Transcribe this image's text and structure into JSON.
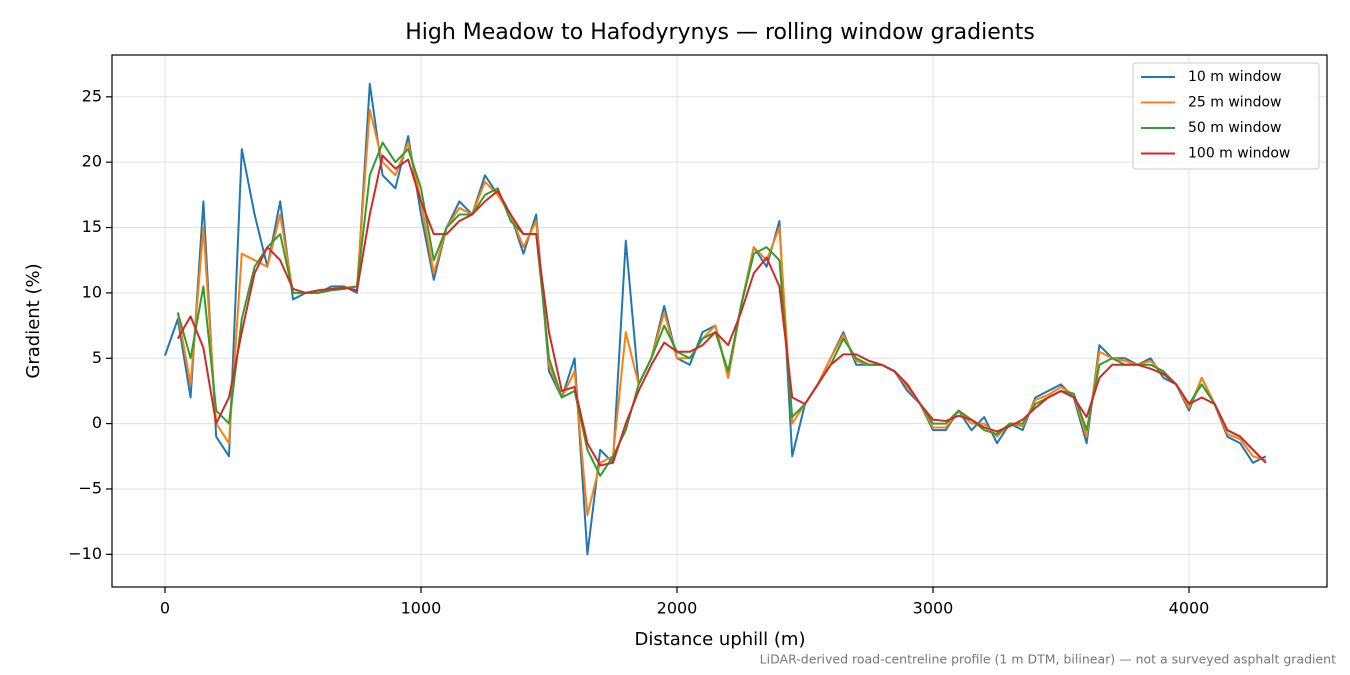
{
  "chart_data": {
    "type": "line",
    "title": "High Meadow to Hafodyrynys — rolling window gradients",
    "x_label": "Distance uphill (m)",
    "y_label": "Gradient (%)",
    "footnote": "LiDAR-derived road-centreline profile (1 m DTM, bilinear) — not a surveyed asphalt gradient",
    "x": [
      0,
      50,
      100,
      150,
      200,
      250,
      300,
      350,
      400,
      450,
      500,
      550,
      600,
      650,
      700,
      750,
      800,
      850,
      900,
      950,
      1000,
      1050,
      1100,
      1150,
      1200,
      1250,
      1300,
      1350,
      1400,
      1450,
      1500,
      1550,
      1600,
      1650,
      1700,
      1750,
      1800,
      1850,
      1900,
      1950,
      2000,
      2050,
      2100,
      2150,
      2200,
      2250,
      2300,
      2350,
      2400,
      2450,
      2500,
      2550,
      2600,
      2650,
      2700,
      2750,
      2800,
      2850,
      2900,
      2950,
      3000,
      3050,
      3100,
      3150,
      3200,
      3250,
      3300,
      3350,
      3400,
      3450,
      3500,
      3550,
      3600,
      3650,
      3700,
      3750,
      3800,
      3850,
      3900,
      3950,
      4000,
      4050,
      4100,
      4150,
      4200,
      4250,
      4300
    ],
    "series": [
      {
        "name": "10 m window",
        "color": "#1f77b4",
        "values": [
          5.2,
          8,
          2,
          17,
          -1,
          -2.5,
          21,
          16,
          12,
          17,
          9.5,
          10,
          10,
          10.5,
          10.5,
          10,
          26,
          19,
          18,
          22,
          16,
          11,
          15,
          17,
          16,
          19,
          17.5,
          16,
          13,
          16,
          4,
          2,
          5,
          -10,
          -2,
          -3,
          14,
          3,
          5,
          9,
          5,
          4.5,
          7,
          7.5,
          3.5,
          9,
          13.5,
          12,
          15.5,
          -2.5,
          1.5,
          3,
          5,
          7,
          4.5,
          4.5,
          4.5,
          4,
          2.5,
          1.5,
          -0.5,
          -0.5,
          1,
          -0.5,
          0.5,
          -1.5,
          0,
          -0.5,
          2,
          2.5,
          3,
          2,
          -1.5,
          6,
          5,
          5,
          4.5,
          5,
          3.5,
          3,
          1,
          3.5,
          1.5,
          -1,
          -1.5,
          -3,
          -2.5
        ]
      },
      {
        "name": "25 m window",
        "color": "#ff7f0e",
        "values": [
          null,
          8.5,
          3,
          15,
          0,
          -1.5,
          13,
          12.5,
          12,
          16,
          10,
          10,
          10,
          10.3,
          10.4,
          10.5,
          24,
          20,
          19,
          21.5,
          17,
          11.5,
          15,
          16.5,
          16,
          18.5,
          17.5,
          16,
          13.5,
          15.5,
          4.5,
          2,
          4,
          -7,
          -3,
          -2.5,
          7,
          3,
          5,
          8.5,
          5,
          5,
          6.5,
          7.5,
          3.5,
          9,
          13.5,
          12.5,
          15,
          0,
          1.5,
          3,
          5,
          6.8,
          4.8,
          4.5,
          4.5,
          4,
          2.8,
          1.5,
          -0.3,
          -0.3,
          1,
          0,
          0,
          -1,
          0,
          -0.2,
          1.8,
          2.2,
          2.8,
          2.2,
          -1,
          5.5,
          5,
          4.8,
          4.5,
          4.8,
          3.8,
          3,
          1.2,
          3.5,
          1.5,
          -0.8,
          -1.2,
          -2.5,
          -2.8
        ]
      },
      {
        "name": "50 m window",
        "color": "#2ca02c",
        "values": [
          null,
          8.5,
          5,
          10.5,
          1,
          0,
          8,
          12,
          13.5,
          14.5,
          10,
          10,
          10,
          10.2,
          10.3,
          10.5,
          19,
          21.5,
          20,
          21,
          18,
          12.5,
          15,
          16,
          16,
          17.5,
          18,
          15.5,
          14.5,
          14.5,
          5,
          2,
          2.5,
          -2,
          -4,
          -2.5,
          -0.5,
          3,
          5,
          7.5,
          5.5,
          5,
          6.5,
          7,
          4,
          9,
          13,
          13.5,
          12.5,
          0.5,
          1.5,
          3,
          4.5,
          6.5,
          5,
          4.5,
          4.5,
          4,
          3,
          1.5,
          0,
          0,
          1,
          0.3,
          -0.5,
          -0.8,
          0,
          0,
          1.5,
          2,
          2.5,
          2.3,
          -0.5,
          4.5,
          5,
          4.5,
          4.5,
          4.5,
          4,
          3,
          1.5,
          3,
          1.5,
          -0.5,
          -1,
          -2,
          -3
        ]
      },
      {
        "name": "100 m window",
        "color": "#d62728",
        "values": [
          null,
          6.5,
          8.2,
          5.8,
          0,
          2,
          7,
          11.5,
          13.5,
          12.5,
          10.3,
          10,
          10.2,
          10.3,
          10.4,
          10.2,
          16,
          20.5,
          19.5,
          20.2,
          17,
          14.5,
          14.5,
          15.5,
          16,
          17,
          17.8,
          16,
          14.5,
          14.5,
          7,
          2.5,
          2.8,
          -1.5,
          -3.2,
          -3,
          0,
          2.5,
          4.5,
          6.2,
          5.5,
          5.5,
          6,
          7,
          6,
          8.5,
          11.5,
          12.7,
          10.5,
          2,
          1.5,
          3,
          4.5,
          5.3,
          5.3,
          4.8,
          4.5,
          4,
          3,
          1.5,
          0.3,
          0.2,
          0.6,
          0.3,
          -0.3,
          -0.6,
          -0.2,
          0.3,
          1.2,
          2,
          2.5,
          2,
          0.5,
          3.5,
          4.5,
          4.5,
          4.5,
          4.2,
          3.8,
          3,
          1.5,
          2,
          1.5,
          -0.5,
          -1,
          -2,
          -3
        ]
      }
    ],
    "xlim": [
      -207,
      4539
    ],
    "ylim": [
      -12.5,
      28.2
    ],
    "xticks": [
      0,
      1000,
      2000,
      3000,
      4000
    ],
    "yticks": [
      {
        "value": -10,
        "label": "−10"
      },
      {
        "value": -5,
        "label": "−5"
      },
      0,
      5,
      10,
      15,
      20,
      25
    ],
    "grid": true,
    "legend": "upper right"
  }
}
